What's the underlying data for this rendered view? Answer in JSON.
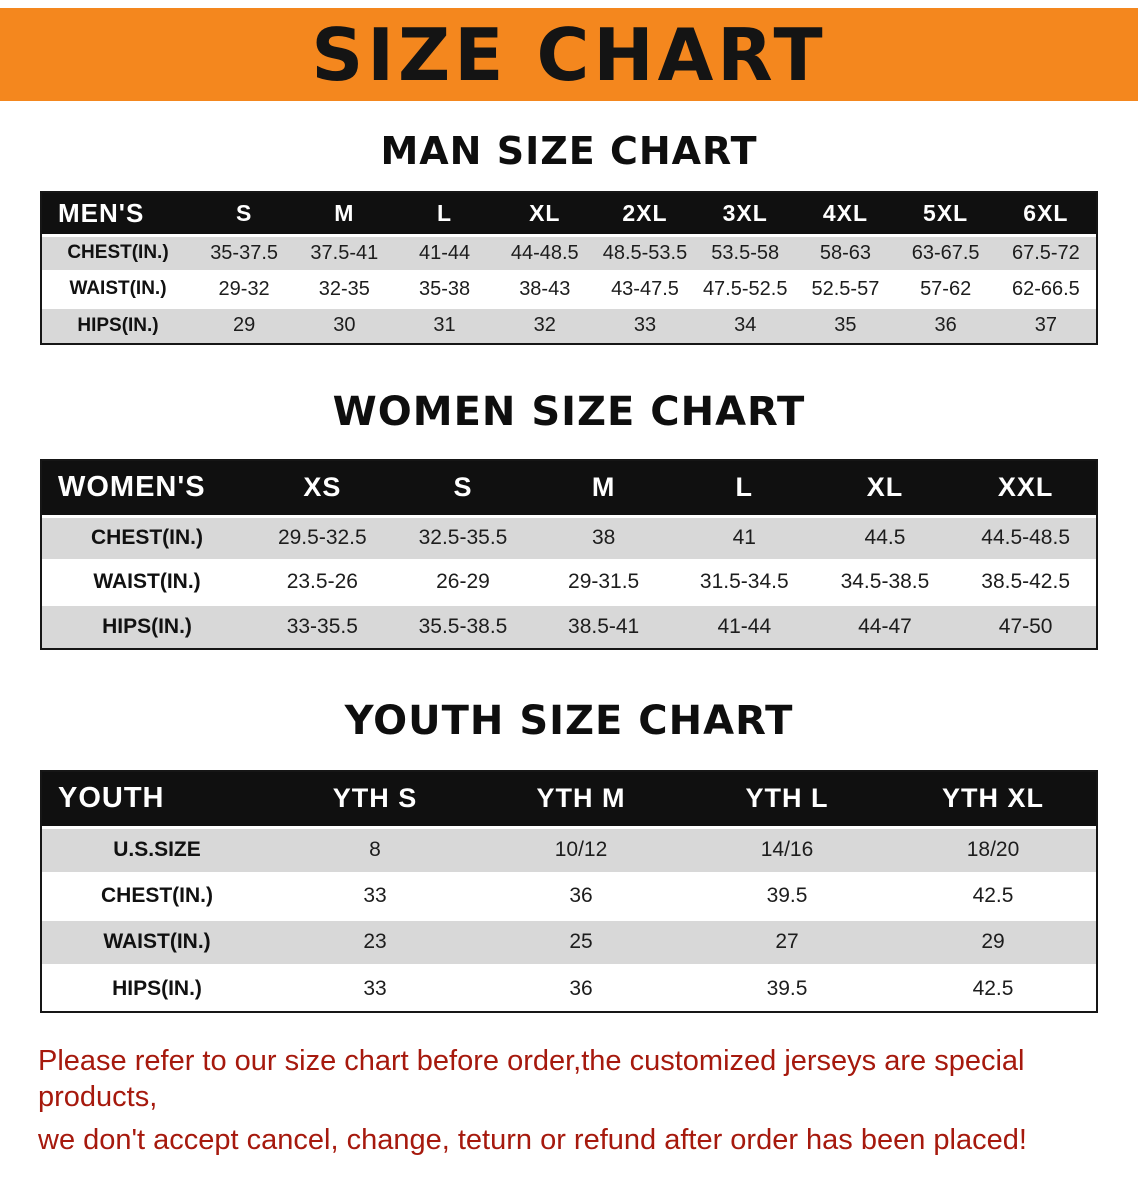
{
  "banner": {
    "title": "SIZE CHART",
    "background_color": "#F4871E",
    "text_color": "#141414"
  },
  "chart_data": [
    {
      "type": "table",
      "name": "men-size-table",
      "title": "MAN SIZE CHART",
      "header_label": "MEN'S",
      "columns": [
        "S",
        "M",
        "L",
        "XL",
        "2XL",
        "3XL",
        "4XL",
        "5XL",
        "6XL"
      ],
      "rows": [
        {
          "label": "CHEST(IN.)",
          "values": [
            "35-37.5",
            "37.5-41",
            "41-44",
            "44-48.5",
            "48.5-53.5",
            "53.5-58",
            "58-63",
            "63-67.5",
            "67.5-72"
          ]
        },
        {
          "label": "WAIST(IN.)",
          "values": [
            "29-32",
            "32-35",
            "35-38",
            "38-43",
            "43-47.5",
            "47.5-52.5",
            "52.5-57",
            "57-62",
            "62-66.5"
          ]
        },
        {
          "label": "HIPS(IN.)",
          "values": [
            "29",
            "30",
            "31",
            "32",
            "33",
            "34",
            "35",
            "36",
            "37"
          ]
        }
      ]
    },
    {
      "type": "table",
      "name": "women-size-table",
      "title": "WOMEN SIZE CHART",
      "header_label": "WOMEN'S",
      "columns": [
        "XS",
        "S",
        "M",
        "L",
        "XL",
        "XXL"
      ],
      "rows": [
        {
          "label": "CHEST(IN.)",
          "values": [
            "29.5-32.5",
            "32.5-35.5",
            "38",
            "41",
            "44.5",
            "44.5-48.5"
          ]
        },
        {
          "label": "WAIST(IN.)",
          "values": [
            "23.5-26",
            "26-29",
            "29-31.5",
            "31.5-34.5",
            "34.5-38.5",
            "38.5-42.5"
          ]
        },
        {
          "label": "HIPS(IN.)",
          "values": [
            "33-35.5",
            "35.5-38.5",
            "38.5-41",
            "41-44",
            "44-47",
            "47-50"
          ]
        }
      ]
    },
    {
      "type": "table",
      "name": "youth-size-table",
      "title": "YOUTH SIZE CHART",
      "header_label": "YOUTH",
      "columns": [
        "YTH S",
        "YTH M",
        "YTH L",
        "YTH XL"
      ],
      "rows": [
        {
          "label": "U.S.SIZE",
          "values": [
            "8",
            "10/12",
            "14/16",
            "18/20"
          ]
        },
        {
          "label": "CHEST(IN.)",
          "values": [
            "33",
            "36",
            "39.5",
            "42.5"
          ]
        },
        {
          "label": "WAIST(IN.)",
          "values": [
            "23",
            "25",
            "27",
            "29"
          ]
        },
        {
          "label": "HIPS(IN.)",
          "values": [
            "33",
            "36",
            "39.5",
            "42.5"
          ]
        }
      ]
    }
  ],
  "footer": {
    "line1": "Please refer to our size chart before order,the customized jerseys are special products,",
    "line2": "we don't accept cancel, change, teturn or refund after order has been placed!",
    "text_color": "#A6190D"
  }
}
